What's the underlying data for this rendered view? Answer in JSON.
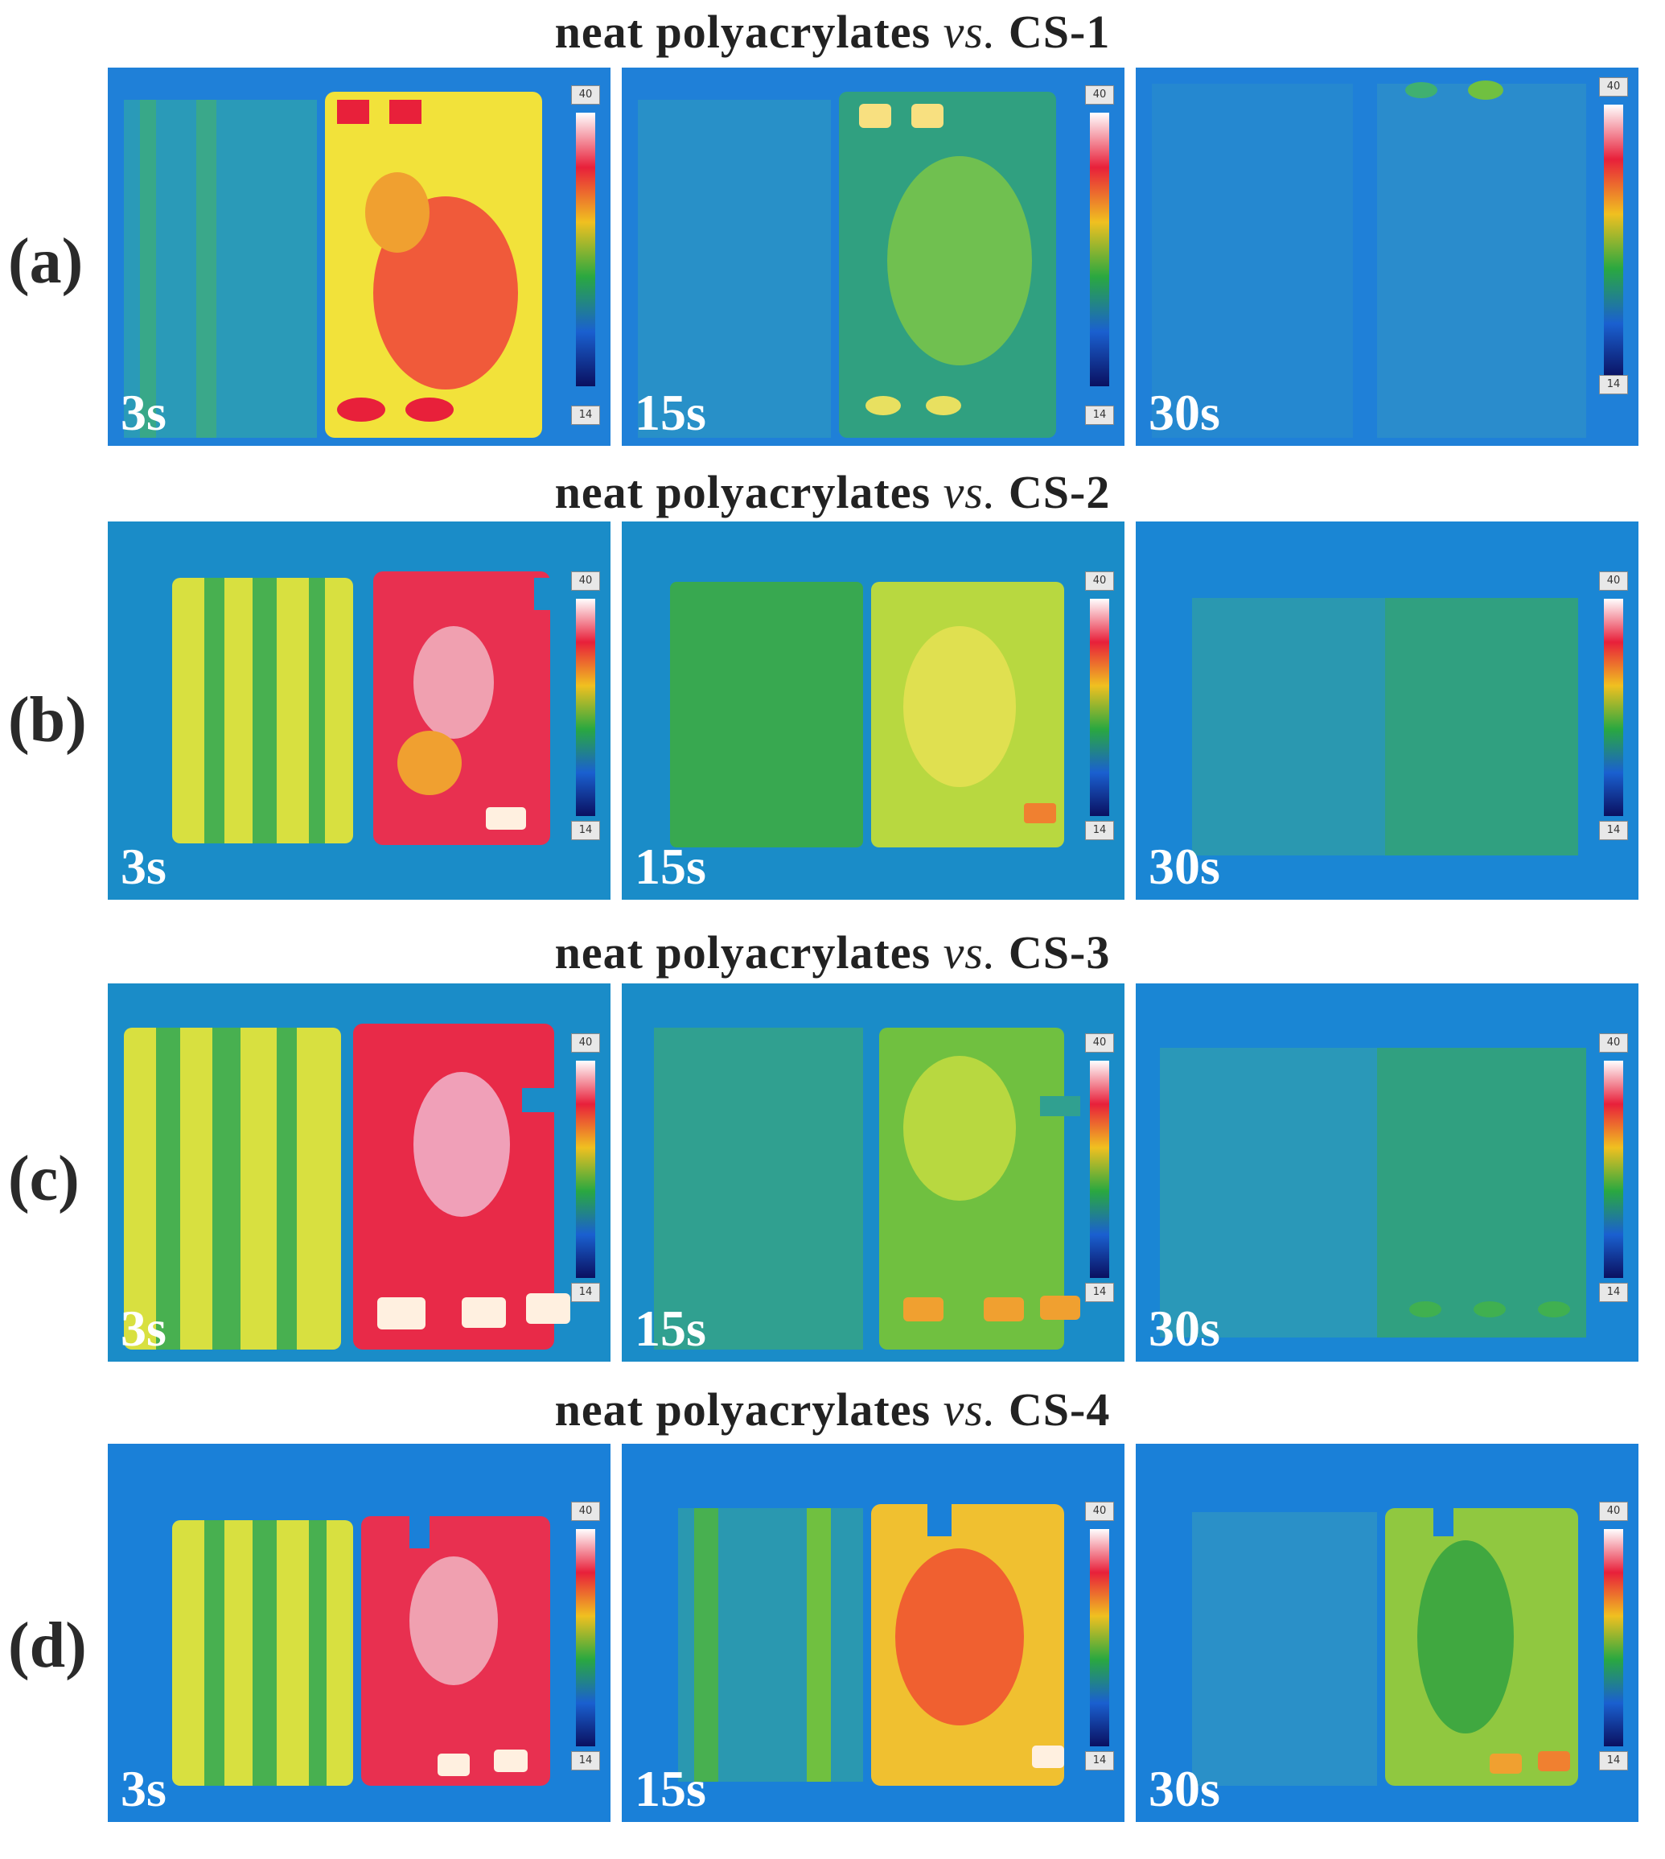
{
  "rows": [
    {
      "label": "(a)",
      "title_left": "neat polyacrylates ",
      "title_vs": "vs.",
      "title_right": " CS-1",
      "panels": [
        {
          "time": "3s"
        },
        {
          "time": "15s"
        },
        {
          "time": "30s"
        }
      ]
    },
    {
      "label": "(b)",
      "title_left": "neat polyacrylates ",
      "title_vs": "vs.",
      "title_right": " CS-2",
      "panels": [
        {
          "time": "3s"
        },
        {
          "time": "15s"
        },
        {
          "time": "30s"
        }
      ]
    },
    {
      "label": "(c)",
      "title_left": "neat polyacrylates ",
      "title_vs": "vs.",
      "title_right": " CS-3",
      "panels": [
        {
          "time": "3s"
        },
        {
          "time": "15s"
        },
        {
          "time": "30s"
        }
      ]
    },
    {
      "label": "(d)",
      "title_left": "neat polyacrylates ",
      "title_vs": "vs.",
      "title_right": " CS-4",
      "panels": [
        {
          "time": "3s"
        },
        {
          "time": "15s"
        },
        {
          "time": "30s"
        }
      ]
    }
  ],
  "scale": {
    "max": "40",
    "min": "14"
  }
}
